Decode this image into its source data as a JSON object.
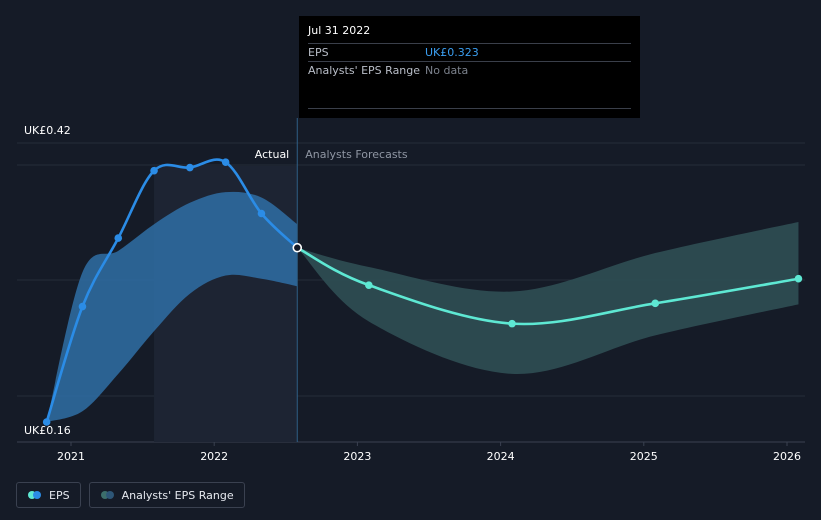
{
  "tooltip": {
    "date": "Jul 31 2022",
    "eps_label": "EPS",
    "eps_value": "UK£0.323",
    "range_label": "Analysts' EPS Range",
    "range_value": "No data"
  },
  "legend": {
    "eps": "EPS",
    "range": "Analysts' EPS Range"
  },
  "colors": {
    "background": "#151b27",
    "eps_actual": "#2b8ce6",
    "eps_forecast": "#5ee8d3",
    "range_actual": "#2f6ea6",
    "range_forecast": "#2f4f54"
  },
  "chart_data": {
    "type": "line",
    "y_axis_labels": {
      "top": "UK£0.42",
      "bottom": "UK£0.16"
    },
    "ylim": [
      0.16,
      0.42
    ],
    "xlim": [
      2020.82,
      2026.08
    ],
    "x_ticks": [
      2021,
      2022,
      2023,
      2024,
      2025,
      2026
    ],
    "x_tick_labels": [
      "2021",
      "2022",
      "2023",
      "2024",
      "2025",
      "2026"
    ],
    "segment_labels": {
      "actual": "Actual",
      "forecast": "Analysts Forecasts"
    },
    "divider_x": 2022.58,
    "highlight_start_x": 2021.58,
    "series": [
      {
        "name": "EPS",
        "segment": "actual",
        "points": [
          [
            2020.83,
            0.16
          ],
          [
            2021.08,
            0.268
          ],
          [
            2021.33,
            0.332
          ],
          [
            2021.58,
            0.395
          ],
          [
            2021.83,
            0.398
          ],
          [
            2022.08,
            0.403
          ],
          [
            2022.33,
            0.355
          ],
          [
            2022.58,
            0.323
          ]
        ]
      },
      {
        "name": "EPS",
        "segment": "forecast",
        "points": [
          [
            2022.58,
            0.323
          ],
          [
            2023.08,
            0.288
          ],
          [
            2024.08,
            0.252
          ],
          [
            2025.08,
            0.271
          ],
          [
            2026.08,
            0.294
          ]
        ]
      }
    ],
    "ranges": [
      {
        "name": "Analysts' EPS Range",
        "segment": "actual",
        "upper": [
          [
            2020.83,
            0.16
          ],
          [
            2021.08,
            0.3
          ],
          [
            2021.33,
            0.32
          ],
          [
            2021.58,
            0.345
          ],
          [
            2021.83,
            0.365
          ],
          [
            2022.08,
            0.375
          ],
          [
            2022.33,
            0.37
          ],
          [
            2022.58,
            0.345
          ]
        ],
        "lower": [
          [
            2020.83,
            0.16
          ],
          [
            2021.08,
            0.17
          ],
          [
            2021.33,
            0.205
          ],
          [
            2021.58,
            0.245
          ],
          [
            2021.83,
            0.28
          ],
          [
            2022.08,
            0.297
          ],
          [
            2022.33,
            0.294
          ],
          [
            2022.58,
            0.287
          ]
        ]
      },
      {
        "name": "Analysts' EPS Range",
        "segment": "forecast",
        "upper": [
          [
            2022.58,
            0.323
          ],
          [
            2023.08,
            0.305
          ],
          [
            2024.08,
            0.282
          ],
          [
            2025.08,
            0.318
          ],
          [
            2026.08,
            0.347
          ]
        ],
        "lower": [
          [
            2022.58,
            0.323
          ],
          [
            2023.08,
            0.254
          ],
          [
            2024.08,
            0.205
          ],
          [
            2025.08,
            0.241
          ],
          [
            2026.08,
            0.27
          ]
        ]
      }
    ]
  }
}
